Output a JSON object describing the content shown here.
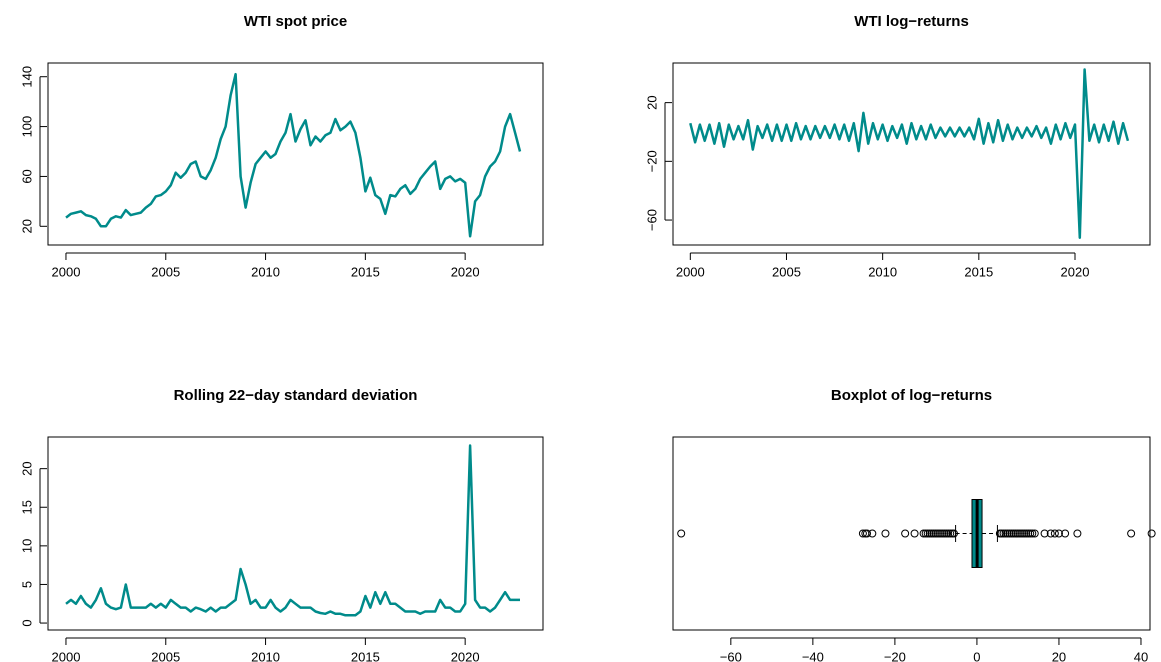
{
  "chart_data": [
    {
      "type": "line",
      "title": "WTI spot price",
      "color": "#008b8b",
      "x": [
        2000,
        2000.25,
        2000.5,
        2000.75,
        2001,
        2001.25,
        2001.5,
        2001.75,
        2002,
        2002.25,
        2002.5,
        2002.75,
        2003,
        2003.25,
        2003.5,
        2003.75,
        2004,
        2004.25,
        2004.5,
        2004.75,
        2005,
        2005.25,
        2005.5,
        2005.75,
        2006,
        2006.25,
        2006.5,
        2006.75,
        2007,
        2007.25,
        2007.5,
        2007.75,
        2008,
        2008.25,
        2008.5,
        2008.75,
        2009,
        2009.25,
        2009.5,
        2009.75,
        2010,
        2010.25,
        2010.5,
        2010.75,
        2011,
        2011.25,
        2011.5,
        2011.75,
        2012,
        2012.25,
        2012.5,
        2012.75,
        2013,
        2013.25,
        2013.5,
        2013.75,
        2014,
        2014.25,
        2014.5,
        2014.75,
        2015,
        2015.25,
        2015.5,
        2015.75,
        2016,
        2016.25,
        2016.5,
        2016.75,
        2017,
        2017.25,
        2017.5,
        2017.75,
        2018,
        2018.25,
        2018.5,
        2018.75,
        2019,
        2019.25,
        2019.5,
        2019.75,
        2020,
        2020.25,
        2020.5,
        2020.75,
        2021,
        2021.25,
        2021.5,
        2021.75,
        2022,
        2022.25,
        2022.5,
        2022.75
      ],
      "values": [
        27,
        30,
        31,
        32,
        29,
        28,
        26,
        20,
        20,
        26,
        28,
        27,
        33,
        29,
        30,
        31,
        35,
        38,
        44,
        45,
        48,
        53,
        63,
        59,
        63,
        70,
        72,
        60,
        58,
        65,
        75,
        90,
        100,
        125,
        142,
        60,
        35,
        55,
        70,
        75,
        80,
        75,
        78,
        88,
        95,
        110,
        88,
        98,
        105,
        85,
        92,
        88,
        93,
        95,
        106,
        97,
        100,
        104,
        95,
        75,
        48,
        59,
        45,
        42,
        30,
        45,
        44,
        50,
        53,
        46,
        50,
        58,
        63,
        68,
        72,
        50,
        58,
        60,
        56,
        58,
        55,
        12,
        40,
        45,
        60,
        68,
        72,
        80,
        100,
        110,
        95,
        80
      ],
      "xlim": [
        1999.1,
        2023.9
      ],
      "xticks": [
        2000,
        2005,
        2010,
        2015,
        2020
      ],
      "ylim": [
        5,
        151
      ],
      "yticks": [
        20,
        60,
        100,
        140
      ]
    },
    {
      "type": "line",
      "title": "WTI log−returns",
      "color": "#008b8b",
      "x": [
        2000,
        2000.25,
        2000.5,
        2000.75,
        2001,
        2001.25,
        2001.5,
        2001.75,
        2002,
        2002.25,
        2002.5,
        2002.75,
        2003,
        2003.25,
        2003.5,
        2003.75,
        2004,
        2004.25,
        2004.5,
        2004.75,
        2005,
        2005.25,
        2005.5,
        2005.75,
        2006,
        2006.25,
        2006.5,
        2006.75,
        2007,
        2007.25,
        2007.5,
        2007.75,
        2008,
        2008.25,
        2008.5,
        2008.75,
        2009,
        2009.25,
        2009.5,
        2009.75,
        2010,
        2010.25,
        2010.5,
        2010.75,
        2011,
        2011.25,
        2011.5,
        2011.75,
        2012,
        2012.25,
        2012.5,
        2012.75,
        2013,
        2013.25,
        2013.5,
        2013.75,
        2014,
        2014.25,
        2014.5,
        2014.75,
        2015,
        2015.25,
        2015.5,
        2015.75,
        2016,
        2016.25,
        2016.5,
        2016.75,
        2017,
        2017.25,
        2017.5,
        2017.75,
        2018,
        2018.25,
        2018.5,
        2018.75,
        2019,
        2019.25,
        2019.5,
        2019.75,
        2020,
        2020.25,
        2020.5,
        2020.75,
        2021,
        2021.25,
        2021.5,
        2021.75,
        2022,
        2022.25,
        2022.5,
        2022.75
      ],
      "values": [
        6,
        -7,
        5,
        -6,
        5,
        -8,
        6,
        -10,
        5,
        -5,
        4,
        -5,
        8,
        -12,
        4,
        -4,
        5,
        -6,
        5,
        -6,
        5,
        -6,
        6,
        -5,
        4,
        -5,
        4,
        -4,
        4,
        -4,
        5,
        -5,
        5,
        -6,
        6,
        -13,
        13,
        -8,
        6,
        -5,
        5,
        -6,
        4,
        -4,
        5,
        -8,
        6,
        -5,
        4,
        -5,
        5,
        -4,
        3,
        -3,
        3,
        -3,
        3,
        -3,
        3,
        -5,
        9,
        -8,
        6,
        -7,
        8,
        -6,
        5,
        -5,
        3,
        -4,
        3,
        -3,
        4,
        -4,
        3,
        -8,
        5,
        -5,
        6,
        -4,
        5,
        -72,
        42.6,
        -6,
        5,
        -7,
        5,
        -6,
        7,
        -8,
        6,
        -6
      ],
      "xlim": [
        1999.1,
        2023.9
      ],
      "xticks": [
        2000,
        2005,
        2010,
        2015,
        2020
      ],
      "ylim": [
        -77,
        47
      ],
      "yticks": [
        {
          "value": -60,
          "label": "−60"
        },
        {
          "value": -20,
          "label": "−20"
        },
        20
      ]
    },
    {
      "type": "line",
      "title": "Rolling 22−day standard deviation",
      "color": "#008b8b",
      "x": [
        2000,
        2000.25,
        2000.5,
        2000.75,
        2001,
        2001.25,
        2001.5,
        2001.75,
        2002,
        2002.25,
        2002.5,
        2002.75,
        2003,
        2003.25,
        2003.5,
        2003.75,
        2004,
        2004.25,
        2004.5,
        2004.75,
        2005,
        2005.25,
        2005.5,
        2005.75,
        2006,
        2006.25,
        2006.5,
        2006.75,
        2007,
        2007.25,
        2007.5,
        2007.75,
        2008,
        2008.25,
        2008.5,
        2008.75,
        2009,
        2009.25,
        2009.5,
        2009.75,
        2010,
        2010.25,
        2010.5,
        2010.75,
        2011,
        2011.25,
        2011.5,
        2011.75,
        2012,
        2012.25,
        2012.5,
        2012.75,
        2013,
        2013.25,
        2013.5,
        2013.75,
        2014,
        2014.25,
        2014.5,
        2014.75,
        2015,
        2015.25,
        2015.5,
        2015.75,
        2016,
        2016.25,
        2016.5,
        2016.75,
        2017,
        2017.25,
        2017.5,
        2017.75,
        2018,
        2018.25,
        2018.5,
        2018.75,
        2019,
        2019.25,
        2019.5,
        2019.75,
        2020,
        2020.25,
        2020.5,
        2020.75,
        2021,
        2021.25,
        2021.5,
        2021.75,
        2022,
        2022.25,
        2022.5,
        2022.75
      ],
      "values": [
        2.5,
        3,
        2.5,
        3.5,
        2.5,
        2,
        3,
        4.5,
        2.5,
        2,
        1.8,
        2,
        5,
        2,
        2,
        2,
        2,
        2.5,
        2,
        2.5,
        2,
        3,
        2.5,
        2,
        2,
        1.5,
        2,
        1.8,
        1.5,
        2,
        1.5,
        2,
        2,
        2.5,
        3,
        7,
        5,
        2.5,
        3,
        2,
        2,
        3,
        2,
        1.5,
        2,
        3,
        2.5,
        2,
        2,
        2,
        1.5,
        1.3,
        1.2,
        1.5,
        1.2,
        1.2,
        1,
        1,
        1,
        1.5,
        3.5,
        2,
        4,
        2.5,
        4,
        2.5,
        2.5,
        2,
        1.5,
        1.5,
        1.5,
        1.2,
        1.5,
        1.5,
        1.5,
        3,
        2,
        2,
        1.5,
        1.5,
        2.5,
        23,
        3,
        2,
        2,
        1.5,
        2,
        3,
        4,
        3,
        3,
        3
      ],
      "xlim": [
        1999.1,
        2023.9
      ],
      "xticks": [
        2000,
        2005,
        2010,
        2015,
        2020
      ],
      "ylim": [
        -0.9,
        24.1
      ],
      "yticks": [
        0,
        5,
        10,
        15,
        20
      ]
    },
    {
      "type": "boxplot",
      "title": "Boxplot of log−returns",
      "color": "#008b8b",
      "stats": {
        "min": -5.2,
        "q1": -1.2,
        "median": 0.05,
        "q3": 1.25,
        "max": 5.0
      },
      "outliers": [
        -72.1,
        -27.8,
        -27.2,
        -26.8,
        -25.5,
        -22.3,
        -17.5,
        -15.2,
        -13,
        -12.5,
        -12,
        -11.5,
        -11,
        -10.5,
        -10,
        -9.5,
        -9,
        -8.5,
        -8,
        -7.5,
        -7,
        -6.5,
        -6,
        -5.6,
        5.6,
        6,
        6.5,
        7,
        7.5,
        8,
        8.5,
        9,
        9.5,
        10,
        10.5,
        11,
        11.5,
        12,
        12.5,
        13,
        13.5,
        14.1,
        16.5,
        18,
        19,
        20,
        21.5,
        24.5,
        37.6,
        42.6
      ],
      "xlim": [
        -74.1,
        42.2
      ],
      "xticks": [
        {
          "value": -60,
          "label": "−60"
        },
        {
          "value": -40,
          "label": "−40"
        },
        {
          "value": -20,
          "label": "−20"
        },
        0,
        20,
        40
      ]
    }
  ]
}
